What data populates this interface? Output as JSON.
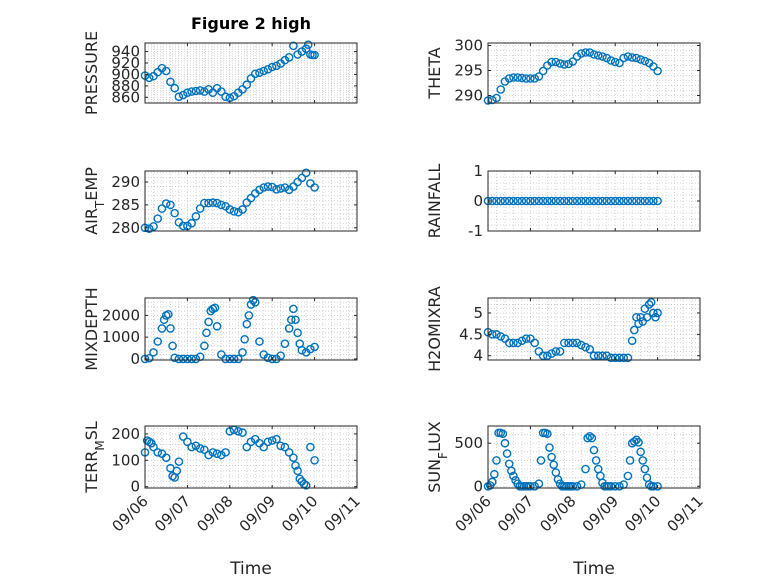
{
  "title": "Figure 2 high",
  "xlabel": "Time",
  "colors": {
    "marker": "#0072BD",
    "axis": "#262626",
    "grid": "#c8c8c8",
    "background": "#ffffff"
  },
  "chart_data": [
    {
      "type": "scatter",
      "ylabel": "PRESSURE",
      "ylabel_parts": [
        {
          "t": "PRESSURE"
        }
      ],
      "ylim": [
        850,
        955
      ],
      "yticks": [
        {
          "v": 860,
          "label": "860"
        },
        {
          "v": 880,
          "label": "880"
        },
        {
          "v": 900,
          "label": "900"
        },
        {
          "v": 920,
          "label": "920"
        },
        {
          "v": 940,
          "label": "940"
        }
      ],
      "xlim": [
        0,
        5
      ],
      "xtick_labels": [
        "09/06",
        "09/07",
        "09/08",
        "09/09",
        "09/10",
        "09/11"
      ],
      "x": [
        0.0,
        0.1,
        0.2,
        0.3,
        0.4,
        0.5,
        0.6,
        0.7,
        0.8,
        0.9,
        1.0,
        1.1,
        1.2,
        1.3,
        1.4,
        1.5,
        1.6,
        1.7,
        1.8,
        1.9,
        2.0,
        2.1,
        2.2,
        2.3,
        2.4,
        2.5,
        2.6,
        2.7,
        2.8,
        2.9,
        3.0,
        3.1,
        3.2,
        3.3,
        3.4,
        3.5,
        3.6,
        3.7,
        3.8,
        3.85,
        3.9,
        3.95,
        4.0
      ],
      "y": [
        898,
        894,
        897,
        904,
        911,
        906,
        887,
        876,
        861,
        864,
        868,
        870,
        871,
        872,
        870,
        874,
        868,
        876,
        870,
        861,
        859,
        862,
        868,
        874,
        882,
        893,
        901,
        903,
        906,
        909,
        913,
        915,
        919,
        925,
        930,
        950,
        935,
        940,
        945,
        952,
        935,
        934,
        934
      ]
    },
    {
      "type": "scatter",
      "ylabel": "THETA",
      "ylabel_parts": [
        {
          "t": "THETA"
        }
      ],
      "ylim": [
        288.5,
        300.5
      ],
      "yticks": [
        {
          "v": 290,
          "label": "290"
        },
        {
          "v": 295,
          "label": "295"
        },
        {
          "v": 300,
          "label": "300"
        }
      ],
      "xlim": [
        0,
        5
      ],
      "xtick_labels": [
        "09/06",
        "09/07",
        "09/08",
        "09/09",
        "09/10",
        "09/11"
      ],
      "x": [
        0.0,
        0.1,
        0.2,
        0.3,
        0.4,
        0.5,
        0.6,
        0.7,
        0.8,
        0.9,
        1.0,
        1.1,
        1.2,
        1.3,
        1.4,
        1.5,
        1.6,
        1.7,
        1.8,
        1.9,
        2.0,
        2.1,
        2.2,
        2.3,
        2.4,
        2.5,
        2.6,
        2.7,
        2.8,
        2.9,
        3.0,
        3.1,
        3.2,
        3.3,
        3.4,
        3.5,
        3.6,
        3.7,
        3.8,
        3.9,
        4.0
      ],
      "y": [
        289.0,
        289.1,
        289.5,
        291.2,
        292.8,
        293.4,
        293.6,
        293.6,
        293.5,
        293.4,
        293.4,
        293.4,
        293.8,
        294.9,
        296.0,
        296.7,
        296.7,
        296.4,
        296.2,
        296.3,
        296.8,
        297.8,
        298.4,
        298.6,
        298.6,
        298.2,
        298.0,
        297.8,
        297.5,
        297.0,
        296.7,
        296.5,
        297.5,
        297.8,
        297.6,
        297.5,
        297.2,
        296.9,
        296.5,
        295.8,
        294.9
      ]
    },
    {
      "type": "scatter",
      "ylabel": "AIR_TEMP",
      "ylabel_parts": [
        {
          "t": "AIR"
        },
        {
          "t": "T",
          "sub": true
        },
        {
          "t": "EMP"
        }
      ],
      "ylim": [
        279.3,
        292.4
      ],
      "yticks": [
        {
          "v": 280,
          "label": "280"
        },
        {
          "v": 285,
          "label": "285"
        },
        {
          "v": 290,
          "label": "290"
        }
      ],
      "xlim": [
        0,
        5
      ],
      "xtick_labels": [
        "09/06",
        "09/07",
        "09/08",
        "09/09",
        "09/10",
        "09/11"
      ],
      "x": [
        0.0,
        0.1,
        0.2,
        0.3,
        0.4,
        0.5,
        0.6,
        0.7,
        0.8,
        0.9,
        1.0,
        1.1,
        1.2,
        1.3,
        1.4,
        1.5,
        1.6,
        1.7,
        1.8,
        1.9,
        2.0,
        2.1,
        2.2,
        2.3,
        2.4,
        2.5,
        2.6,
        2.7,
        2.8,
        2.9,
        3.0,
        3.1,
        3.2,
        3.3,
        3.4,
        3.5,
        3.6,
        3.7,
        3.8,
        3.9,
        4.0
      ],
      "y": [
        280.0,
        279.8,
        280.3,
        282.0,
        284.2,
        285.3,
        285.0,
        283.2,
        281.2,
        280.4,
        280.4,
        281.0,
        282.5,
        284.2,
        285.4,
        285.4,
        285.5,
        285.4,
        285.0,
        284.7,
        284.0,
        283.6,
        283.4,
        284.0,
        285.5,
        286.5,
        287.5,
        288.3,
        288.8,
        289.0,
        288.9,
        288.4,
        288.6,
        288.8,
        288.3,
        289.0,
        290.0,
        290.9,
        292.0,
        289.7,
        288.8
      ]
    },
    {
      "type": "scatter",
      "ylabel": "RAINFALL",
      "ylabel_parts": [
        {
          "t": "RAINFALL"
        }
      ],
      "ylim": [
        -1,
        1
      ],
      "yticks": [
        {
          "v": -1,
          "label": "-1"
        },
        {
          "v": 0,
          "label": "0"
        },
        {
          "v": 1,
          "label": "1"
        }
      ],
      "xlim": [
        0,
        5
      ],
      "xtick_labels": [
        "09/06",
        "09/07",
        "09/08",
        "09/09",
        "09/10",
        "09/11"
      ],
      "x": [
        0.0,
        0.1,
        0.2,
        0.3,
        0.4,
        0.5,
        0.6,
        0.7,
        0.8,
        0.9,
        1.0,
        1.1,
        1.2,
        1.3,
        1.4,
        1.5,
        1.6,
        1.7,
        1.8,
        1.9,
        2.0,
        2.1,
        2.2,
        2.3,
        2.4,
        2.5,
        2.6,
        2.7,
        2.8,
        2.9,
        3.0,
        3.1,
        3.2,
        3.3,
        3.4,
        3.5,
        3.6,
        3.7,
        3.8,
        3.9,
        4.0
      ],
      "y": [
        0,
        0,
        0,
        0,
        0,
        0,
        0,
        0,
        0,
        0,
        0,
        0,
        0,
        0,
        0,
        0,
        0,
        0,
        0,
        0,
        0,
        0,
        0,
        0,
        0,
        0,
        0,
        0,
        0,
        0,
        0,
        0,
        0,
        0,
        0,
        0,
        0,
        0,
        0,
        0,
        0
      ]
    },
    {
      "type": "scatter",
      "ylabel": "MIXDEPTH",
      "ylabel_parts": [
        {
          "t": "MIXDEPTH"
        }
      ],
      "ylim": [
        -50,
        2800
      ],
      "yticks": [
        {
          "v": 0,
          "label": "0"
        },
        {
          "v": 1000,
          "label": "1000"
        },
        {
          "v": 2000,
          "label": "2000"
        }
      ],
      "xlim": [
        0,
        5
      ],
      "xtick_labels": [
        "09/06",
        "09/07",
        "09/08",
        "09/09",
        "09/10",
        "09/11"
      ],
      "x": [
        0.0,
        0.1,
        0.2,
        0.3,
        0.4,
        0.45,
        0.5,
        0.55,
        0.6,
        0.65,
        0.7,
        0.8,
        0.9,
        1.0,
        1.1,
        1.2,
        1.3,
        1.4,
        1.45,
        1.5,
        1.55,
        1.6,
        1.65,
        1.7,
        1.8,
        1.9,
        2.0,
        2.1,
        2.2,
        2.3,
        2.35,
        2.4,
        2.45,
        2.5,
        2.55,
        2.6,
        2.7,
        2.8,
        2.9,
        3.0,
        3.1,
        3.2,
        3.3,
        3.4,
        3.45,
        3.5,
        3.55,
        3.6,
        3.65,
        3.7,
        3.8,
        3.9,
        4.0
      ],
      "y": [
        0,
        30,
        300,
        800,
        1400,
        1800,
        2000,
        2050,
        1400,
        600,
        50,
        0,
        0,
        0,
        0,
        0,
        100,
        600,
        1200,
        1700,
        2200,
        2300,
        2350,
        1500,
        200,
        0,
        0,
        0,
        0,
        300,
        900,
        1600,
        2000,
        2500,
        2700,
        2600,
        800,
        200,
        50,
        0,
        0,
        150,
        700,
        1400,
        1800,
        2300,
        1800,
        1200,
        700,
        400,
        300,
        450,
        550
      ]
    },
    {
      "type": "scatter",
      "ylabel": "H2OMIXRA",
      "ylabel_parts": [
        {
          "t": "H2OMIXRA"
        }
      ],
      "ylim": [
        3.9,
        5.35
      ],
      "yticks": [
        {
          "v": 4,
          "label": "4"
        },
        {
          "v": 4.5,
          "label": "4.5"
        },
        {
          "v": 5,
          "label": "5"
        }
      ],
      "xlim": [
        0,
        5
      ],
      "xtick_labels": [
        "09/06",
        "09/07",
        "09/08",
        "09/09",
        "09/10",
        "09/11"
      ],
      "x": [
        0.0,
        0.1,
        0.2,
        0.3,
        0.4,
        0.5,
        0.6,
        0.7,
        0.8,
        0.9,
        1.0,
        1.1,
        1.2,
        1.3,
        1.4,
        1.5,
        1.6,
        1.7,
        1.8,
        1.9,
        2.0,
        2.1,
        2.2,
        2.3,
        2.4,
        2.5,
        2.6,
        2.7,
        2.8,
        2.9,
        3.0,
        3.1,
        3.2,
        3.3,
        3.4,
        3.45,
        3.5,
        3.55,
        3.6,
        3.65,
        3.7,
        3.75,
        3.8,
        3.85,
        3.9,
        3.95,
        4.0
      ],
      "y": [
        4.55,
        4.5,
        4.5,
        4.45,
        4.4,
        4.3,
        4.3,
        4.3,
        4.35,
        4.4,
        4.4,
        4.3,
        4.1,
        4.0,
        4.0,
        4.05,
        4.1,
        4.1,
        4.3,
        4.3,
        4.3,
        4.3,
        4.25,
        4.2,
        4.15,
        4.0,
        4.0,
        4.0,
        4.0,
        3.95,
        3.95,
        3.95,
        3.95,
        3.95,
        4.35,
        4.6,
        4.9,
        4.75,
        4.9,
        4.8,
        5.1,
        4.9,
        5.2,
        5.25,
        5.0,
        4.9,
        5.0
      ]
    },
    {
      "type": "scatter",
      "ylabel": "TERR_MSL",
      "ylabel_parts": [
        {
          "t": "TERR"
        },
        {
          "t": "M",
          "sub": true
        },
        {
          "t": "SL"
        }
      ],
      "ylim": [
        -5,
        230
      ],
      "yticks": [
        {
          "v": 0,
          "label": "0"
        },
        {
          "v": 100,
          "label": "100"
        },
        {
          "v": 200,
          "label": "200"
        }
      ],
      "xlim": [
        0,
        5
      ],
      "xtick_labels": [
        "09/06",
        "09/07",
        "09/08",
        "09/09",
        "09/10",
        "09/11"
      ],
      "x": [
        0.0,
        0.05,
        0.1,
        0.15,
        0.2,
        0.3,
        0.4,
        0.5,
        0.6,
        0.65,
        0.7,
        0.75,
        0.8,
        0.9,
        1.0,
        1.1,
        1.2,
        1.3,
        1.4,
        1.5,
        1.6,
        1.7,
        1.8,
        1.9,
        2.0,
        2.1,
        2.2,
        2.3,
        2.4,
        2.5,
        2.6,
        2.7,
        2.8,
        2.9,
        3.0,
        3.1,
        3.2,
        3.3,
        3.4,
        3.5,
        3.55,
        3.6,
        3.65,
        3.7,
        3.75,
        3.8,
        3.9,
        4.0
      ],
      "y": [
        130,
        175,
        170,
        165,
        150,
        130,
        125,
        110,
        70,
        40,
        35,
        60,
        95,
        190,
        170,
        150,
        155,
        145,
        140,
        120,
        130,
        125,
        120,
        130,
        210,
        215,
        210,
        205,
        150,
        170,
        180,
        165,
        150,
        170,
        175,
        180,
        155,
        150,
        130,
        110,
        80,
        60,
        30,
        20,
        10,
        5,
        150,
        100
      ]
    },
    {
      "type": "scatter",
      "ylabel": "SUN_FLUX",
      "ylabel_parts": [
        {
          "t": "SUN"
        },
        {
          "t": "F",
          "sub": true
        },
        {
          "t": "LUX"
        }
      ],
      "ylim": [
        -20,
        700
      ],
      "yticks": [
        {
          "v": 0,
          "label": "0"
        },
        {
          "v": 500,
          "label": "500"
        }
      ],
      "xlim": [
        0,
        5
      ],
      "xtick_labels": [
        "09/06",
        "09/07",
        "09/08",
        "09/09",
        "09/10",
        "09/11"
      ],
      "x": [
        0.0,
        0.05,
        0.1,
        0.15,
        0.2,
        0.25,
        0.3,
        0.35,
        0.4,
        0.45,
        0.5,
        0.55,
        0.6,
        0.65,
        0.7,
        0.75,
        0.8,
        0.85,
        0.9,
        0.95,
        1.0,
        1.1,
        1.2,
        1.25,
        1.3,
        1.35,
        1.4,
        1.45,
        1.5,
        1.55,
        1.6,
        1.65,
        1.7,
        1.75,
        1.8,
        1.85,
        1.9,
        1.95,
        2.0,
        2.1,
        2.2,
        2.3,
        2.35,
        2.4,
        2.45,
        2.5,
        2.55,
        2.6,
        2.65,
        2.7,
        2.75,
        2.8,
        2.85,
        2.9,
        3.0,
        3.1,
        3.2,
        3.3,
        3.35,
        3.4,
        3.45,
        3.5,
        3.55,
        3.6,
        3.65,
        3.7,
        3.75,
        3.8,
        3.85,
        3.9,
        4.0
      ],
      "y": [
        0,
        10,
        50,
        140,
        300,
        620,
        620,
        610,
        500,
        380,
        260,
        180,
        120,
        70,
        30,
        0,
        0,
        0,
        0,
        0,
        0,
        0,
        30,
        300,
        620,
        620,
        610,
        450,
        340,
        250,
        160,
        80,
        30,
        0,
        0,
        0,
        0,
        0,
        0,
        0,
        20,
        200,
        560,
        580,
        560,
        420,
        300,
        200,
        120,
        40,
        0,
        0,
        0,
        0,
        0,
        0,
        20,
        120,
        300,
        500,
        520,
        540,
        510,
        400,
        300,
        200,
        100,
        20,
        0,
        0,
        0
      ]
    }
  ]
}
